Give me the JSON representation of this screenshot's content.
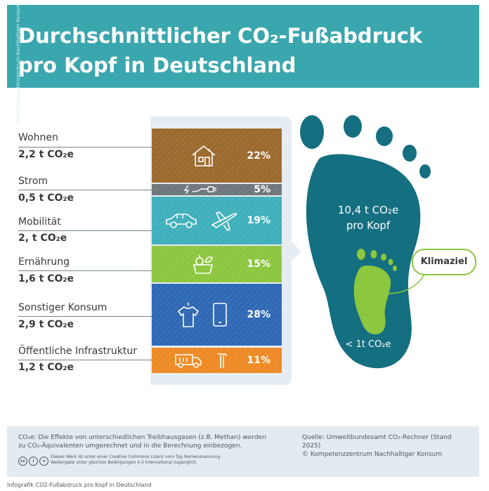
{
  "header": {
    "title_line1": "Durchschnittlicher CO₂-Fußabdruck",
    "title_line2": "pro Kopf in Deutschland",
    "side_credit": "Grafik: Kompetenzzentrum Nachhaltiger Konsum"
  },
  "chart_data": {
    "type": "stacked-bar",
    "title": "Durchschnittlicher CO₂-Fußabdruck pro Kopf in Deutschland",
    "unit": "t CO₂e",
    "total": 10.4,
    "categories": [
      "Wohnen",
      "Strom",
      "Mobilität",
      "Ernährung",
      "Sonstiger Konsum",
      "Öffentliche Infrastruktur"
    ],
    "values": [
      2.2,
      0.5,
      2.0,
      1.6,
      2.9,
      1.2
    ],
    "value_labels": [
      "2,2 t CO₂e",
      "0,5 t CO₂e",
      "2, t CO₂e",
      "1,6 t CO₂e",
      "2,9 t CO₂e",
      "1,2 t CO₂e"
    ],
    "percent_labels": [
      "22%",
      "5%",
      "19%",
      "15%",
      "28%",
      "11%"
    ],
    "colors": [
      "#9c6a2e",
      "#6f767c",
      "#3fb0bc",
      "#8dc63f",
      "#2f68b4",
      "#ee8a25"
    ],
    "icons": [
      [
        "house-icon"
      ],
      [
        "plug-icon"
      ],
      [
        "car-icon",
        "plane-icon"
      ],
      [
        "food-basket-icon"
      ],
      [
        "tshirt-icon",
        "smartphone-icon"
      ],
      [
        "truck-icon",
        "pipe-icon"
      ]
    ]
  },
  "footprint": {
    "total_line1": "10,4 t CO₂e",
    "total_line2": "pro Kopf",
    "target_label": "< 1t CO₂e",
    "badge": "Klimaziel",
    "color_big": "#146f80",
    "color_small": "#8dc63f"
  },
  "footer": {
    "note": "CO₂e: Die Effekte von unterschiedlichen Treibhausgasen (z.B. Methan) werden zu CO₂-Äquivalenten umgerechnet und in die Berechnung einbezogen.",
    "source_line1": "Quelle: Umweltbundesamt CO₂-Rechner (Stand 2025)",
    "source_line2": "© Kompetenzzentrum Nachhaltiger Konsum",
    "cc_symbols": [
      "cc",
      "i",
      "="
    ],
    "license": "Dieses Werk ist unter einer Creative Commons Lizenz vom Typ Namensnennung - Weitergabe unter gleichen Bedingungen 4.0 International zugänglich"
  },
  "caption": "Infografik CO2-Fußabdruck pro Kopf in Deutschland"
}
